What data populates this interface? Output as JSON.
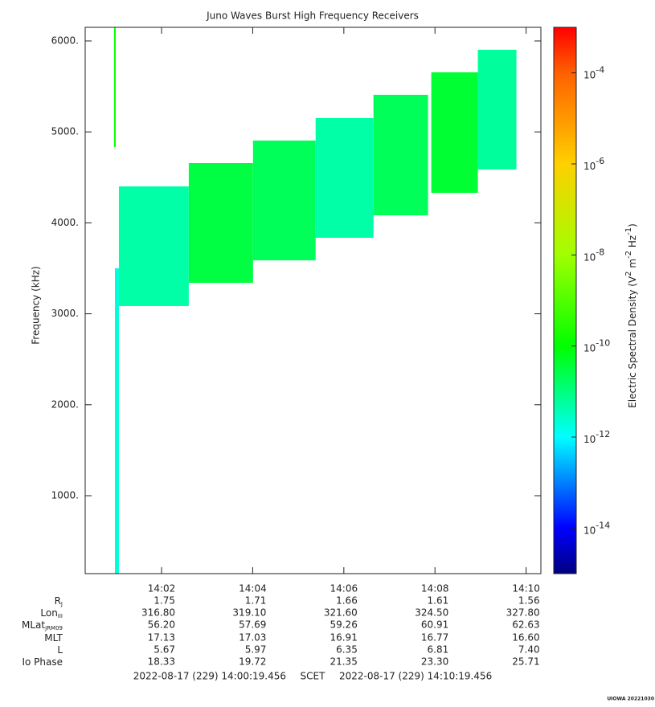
{
  "chart_data": {
    "type": "spectrogram",
    "title": "Juno Waves Burst High Frequency Receivers",
    "ylabel": "Frequency (kHz)",
    "ylim": [
      143,
      6150
    ],
    "yticks": [
      {
        "value": 1000,
        "label": "1000."
      },
      {
        "value": 2000,
        "label": "2000."
      },
      {
        "value": 3000,
        "label": "3000."
      },
      {
        "value": 4000,
        "label": "4000."
      },
      {
        "value": 5000,
        "label": "5000."
      },
      {
        "value": 6000,
        "label": "6000."
      }
    ],
    "xlim": [
      0.324,
      10.324
    ],
    "xticks": [
      {
        "value": 2,
        "label": "14:02"
      },
      {
        "value": 4,
        "label": "14:04"
      },
      {
        "value": 6,
        "label": "14:06"
      },
      {
        "value": 8,
        "label": "14:08"
      },
      {
        "value": 10,
        "label": "14:10"
      }
    ],
    "blocks": [
      {
        "t": [
          0.958,
          0.993
        ],
        "f": [
          4834,
          6150
        ],
        "value": 1e-10
      },
      {
        "t": [
          0.976,
          1.064
        ],
        "f": [
          143,
          3500
        ],
        "value": 2e-12
      },
      {
        "t": [
          1.064,
          2.597
        ],
        "f": [
          3085,
          4401
        ],
        "value": 5e-12
      },
      {
        "t": [
          2.597,
          4.007
        ],
        "f": [
          3341,
          4657
        ],
        "value": 3e-11
      },
      {
        "t": [
          4.007,
          5.381
        ],
        "f": [
          3588,
          4905
        ],
        "value": 2e-11
      },
      {
        "t": [
          5.381,
          6.65
        ],
        "f": [
          3836,
          5152
        ],
        "value": 5e-12
      },
      {
        "t": [
          6.65,
          7.848
        ],
        "f": [
          4083,
          5408
        ],
        "value": 2e-11
      },
      {
        "t": [
          7.919,
          8.941
        ],
        "f": [
          4330,
          5655
        ],
        "value": 4e-11
      },
      {
        "t": [
          8.941,
          9.787
        ],
        "f": [
          4587,
          5903
        ],
        "value": 6e-12
      }
    ],
    "colorbar": {
      "label": [
        "Electric Spectral Density (V",
        "2",
        " m",
        "-2",
        " Hz",
        "-1",
        ")"
      ],
      "log": true,
      "clim": [
        1e-15,
        0.001
      ],
      "ticks": [
        {
          "value": 1e-14,
          "label": "10",
          "exponent": "-14"
        },
        {
          "value": 1e-12,
          "label": "10",
          "exponent": "-12"
        },
        {
          "value": 1e-10,
          "label": "10",
          "exponent": "-10"
        },
        {
          "value": 1e-08,
          "label": "10",
          "exponent": "-8"
        },
        {
          "value": 1e-06,
          "label": "10",
          "exponent": "-6"
        },
        {
          "value": 0.0001,
          "label": "10",
          "exponent": "-4"
        }
      ],
      "colormap": [
        [
          1e-15,
          "#000080"
        ],
        [
          1e-14,
          "#0000ff"
        ],
        [
          1e-12,
          "#00ffff"
        ],
        [
          1e-10,
          "#00ff00"
        ],
        [
          1e-08,
          "#a0ff00"
        ],
        [
          1e-06,
          "#ffd000"
        ],
        [
          0.0001,
          "#ff6000"
        ],
        [
          0.001,
          "#ff0000"
        ]
      ]
    }
  },
  "ephemeris": {
    "rows": [
      {
        "label": "R",
        "sub": "J",
        "values": [
          "1.75",
          "1.71",
          "1.66",
          "1.61",
          "1.56"
        ]
      },
      {
        "label": "Lon",
        "sub": "III",
        "values": [
          "316.80",
          "319.10",
          "321.60",
          "324.50",
          "327.80"
        ]
      },
      {
        "label": "MLat",
        "sub": "JRM09",
        "values": [
          "56.20",
          "57.69",
          "59.26",
          "60.91",
          "62.63"
        ]
      },
      {
        "label": "MLT",
        "values": [
          "17.13",
          "17.03",
          "16.91",
          "16.77",
          "16.60"
        ]
      },
      {
        "label": "L",
        "values": [
          "5.67",
          "5.97",
          "6.35",
          "6.81",
          "7.40"
        ]
      },
      {
        "label": "Io Phase",
        "values": [
          "18.33",
          "19.72",
          "21.35",
          "23.30",
          "25.71"
        ]
      }
    ]
  },
  "footer": {
    "start": "2022-08-17 (229) 14:00:19.456",
    "scet": "SCET",
    "end": "2022-08-17 (229) 14:10:19.456"
  },
  "credit": "UIOWA 20221030"
}
